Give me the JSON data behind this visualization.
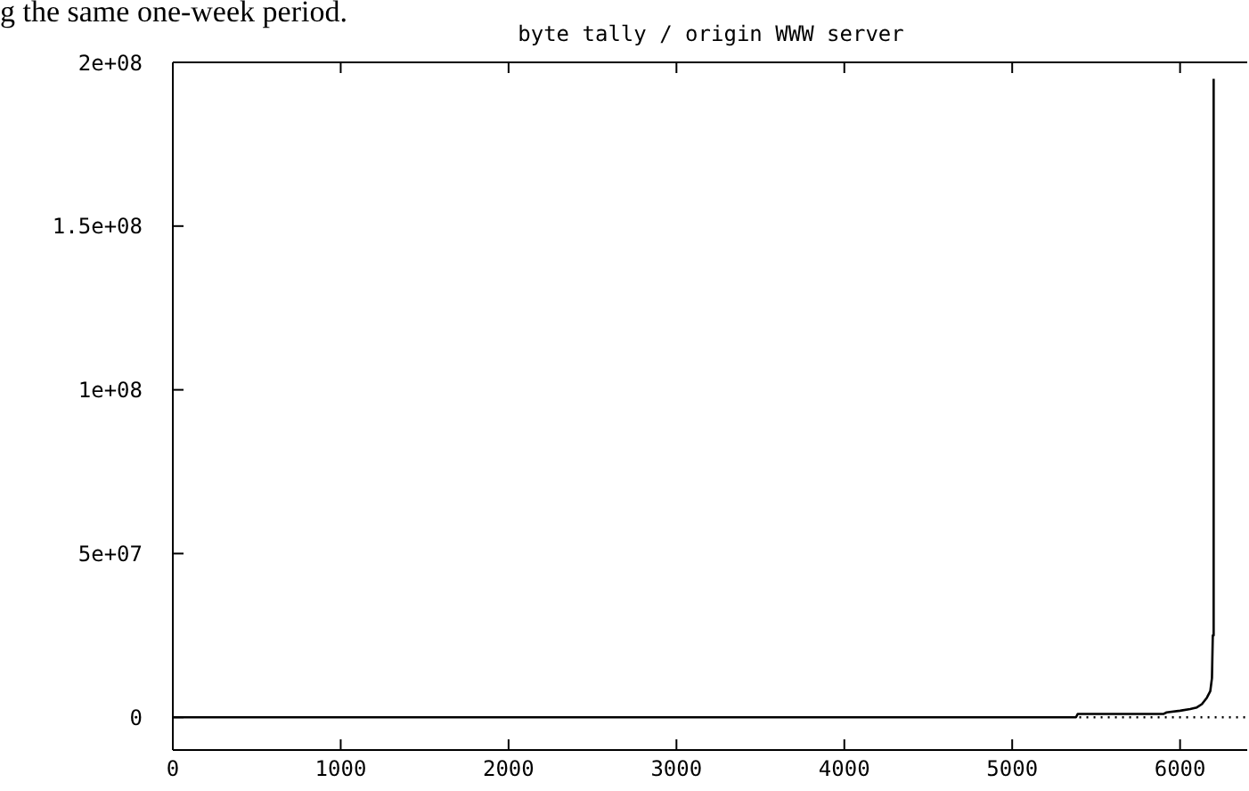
{
  "chart_data": {
    "type": "line",
    "title": "byte tally / origin WWW server",
    "annotations": [
      "g the same one-week period."
    ],
    "series": [
      {
        "color": "#000000",
        "line_style": "solid",
        "x": [
          0,
          5380,
          5390,
          5900,
          5920,
          6000,
          6060,
          6100,
          6130,
          6160,
          6180,
          6190,
          6195,
          6200,
          6200
        ],
        "values": [
          0,
          0,
          1000000,
          1000000,
          1500000,
          2000000,
          2500000,
          3000000,
          4000000,
          6000000,
          8000000,
          12000000,
          25000000,
          25000000,
          195000000
        ]
      },
      {
        "color": "#000000",
        "line_style": "dotted",
        "x": [
          5400,
          6400
        ],
        "values": [
          0,
          0
        ]
      }
    ],
    "xlim": [
      0,
      6400
    ],
    "xticks": [
      0,
      1000,
      2000,
      3000,
      4000,
      5000,
      6000
    ],
    "ylim": [
      -10000000,
      200000000
    ],
    "yticks": [
      {
        "value": 0,
        "label": "0"
      },
      {
        "value": 50000000,
        "label": "5e+07"
      },
      {
        "value": 100000000,
        "label": "1e+08"
      },
      {
        "value": 150000000,
        "label": "1.5e+08"
      },
      {
        "value": 200000000,
        "label": "2e+08"
      }
    ],
    "grid": false,
    "legend": false,
    "marker": "none"
  }
}
